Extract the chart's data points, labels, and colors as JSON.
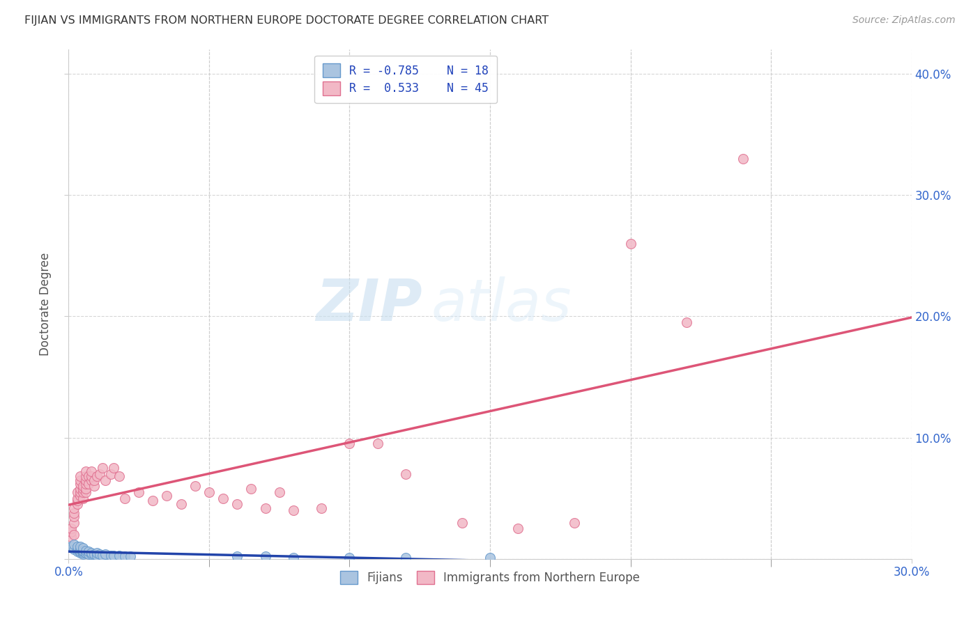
{
  "title": "FIJIAN VS IMMIGRANTS FROM NORTHERN EUROPE DOCTORATE DEGREE CORRELATION CHART",
  "source": "Source: ZipAtlas.com",
  "ylabel": "Doctorate Degree",
  "xlim": [
    0.0,
    0.3
  ],
  "ylim": [
    0.0,
    0.42
  ],
  "blue_color": "#aac4e0",
  "pink_color": "#f2b8c6",
  "blue_edge_color": "#6699cc",
  "pink_edge_color": "#e07090",
  "blue_line_color": "#2244aa",
  "pink_line_color": "#dd5577",
  "watermark_zip": "ZIP",
  "watermark_atlas": "atlas",
  "legend_label1": "Fijians",
  "legend_label2": "Immigrants from Northern Europe",
  "fijian_x": [
    0.001,
    0.002,
    0.002,
    0.003,
    0.003,
    0.003,
    0.004,
    0.004,
    0.004,
    0.004,
    0.005,
    0.005,
    0.005,
    0.005,
    0.005,
    0.006,
    0.006,
    0.007,
    0.007,
    0.008,
    0.008,
    0.009,
    0.01,
    0.01,
    0.011,
    0.012,
    0.013,
    0.015,
    0.016,
    0.018,
    0.02,
    0.022,
    0.06,
    0.07,
    0.08,
    0.1,
    0.12,
    0.15
  ],
  "fijian_y": [
    0.01,
    0.008,
    0.012,
    0.006,
    0.008,
    0.01,
    0.005,
    0.006,
    0.008,
    0.01,
    0.004,
    0.005,
    0.006,
    0.007,
    0.009,
    0.005,
    0.007,
    0.004,
    0.006,
    0.004,
    0.005,
    0.004,
    0.003,
    0.005,
    0.004,
    0.003,
    0.004,
    0.003,
    0.003,
    0.003,
    0.002,
    0.002,
    0.002,
    0.002,
    0.001,
    0.001,
    0.001,
    0.001
  ],
  "northern_x": [
    0.001,
    0.001,
    0.001,
    0.002,
    0.002,
    0.002,
    0.002,
    0.002,
    0.003,
    0.003,
    0.003,
    0.003,
    0.004,
    0.004,
    0.004,
    0.004,
    0.004,
    0.004,
    0.005,
    0.005,
    0.005,
    0.005,
    0.006,
    0.006,
    0.006,
    0.006,
    0.006,
    0.006,
    0.007,
    0.007,
    0.008,
    0.008,
    0.008,
    0.009,
    0.009,
    0.01,
    0.011,
    0.012,
    0.013,
    0.015,
    0.016,
    0.018,
    0.02,
    0.025,
    0.03,
    0.035,
    0.04,
    0.045,
    0.05,
    0.055,
    0.06,
    0.065,
    0.07,
    0.075,
    0.08,
    0.09,
    0.1,
    0.11,
    0.12,
    0.14,
    0.16,
    0.18,
    0.2,
    0.22,
    0.24
  ],
  "northern_y": [
    0.018,
    0.022,
    0.025,
    0.02,
    0.03,
    0.035,
    0.038,
    0.042,
    0.045,
    0.048,
    0.05,
    0.055,
    0.052,
    0.055,
    0.058,
    0.062,
    0.065,
    0.068,
    0.05,
    0.055,
    0.058,
    0.06,
    0.055,
    0.058,
    0.062,
    0.065,
    0.068,
    0.072,
    0.062,
    0.068,
    0.065,
    0.068,
    0.072,
    0.06,
    0.065,
    0.068,
    0.07,
    0.075,
    0.065,
    0.07,
    0.075,
    0.068,
    0.05,
    0.055,
    0.048,
    0.052,
    0.045,
    0.06,
    0.055,
    0.05,
    0.045,
    0.058,
    0.042,
    0.055,
    0.04,
    0.042,
    0.095,
    0.095,
    0.07,
    0.03,
    0.025,
    0.03,
    0.26,
    0.195,
    0.33
  ]
}
